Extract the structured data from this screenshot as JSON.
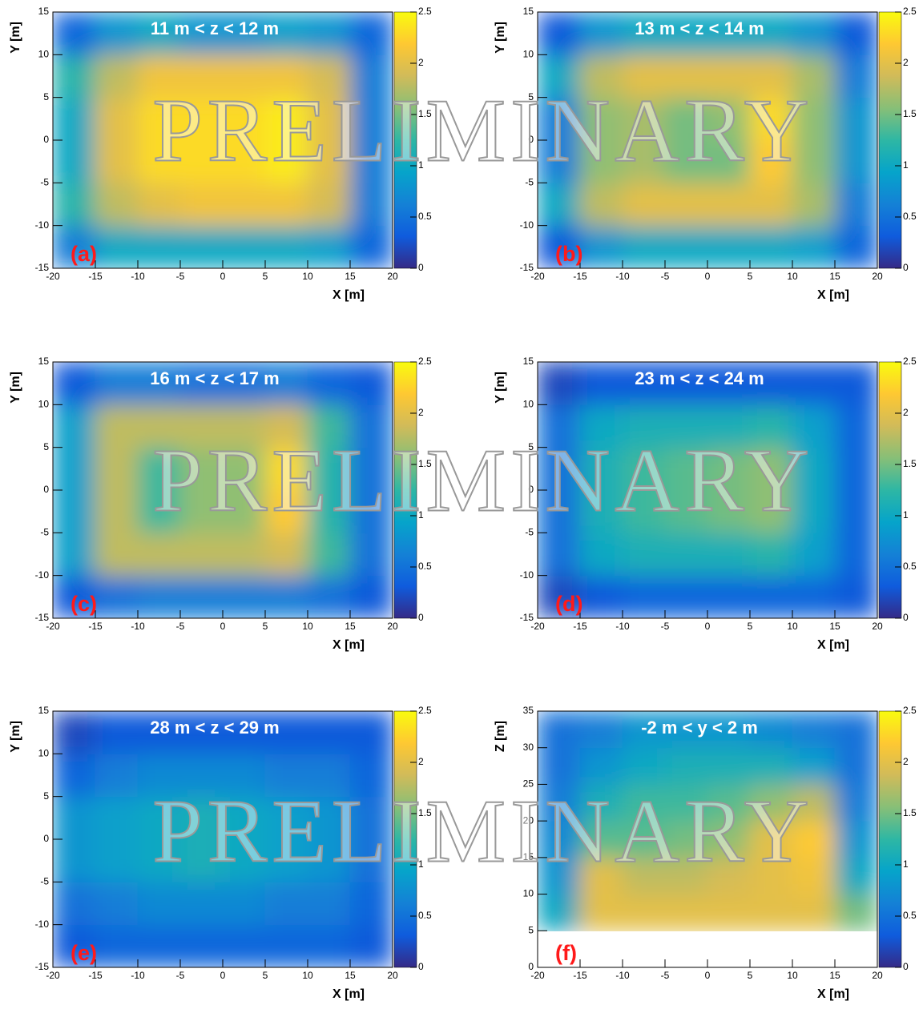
{
  "chart_data": [
    {
      "type": "heatmap",
      "title": "11 m < z < 12 m",
      "label": "(a)",
      "xlabel": "X [m]",
      "ylabel": "Y [m]",
      "xlim": [
        -20,
        20
      ],
      "ylim": [
        -15,
        15
      ],
      "xticks": [
        -20,
        -15,
        -10,
        -5,
        0,
        5,
        10,
        15,
        20
      ],
      "yticks": [
        -15,
        -10,
        -5,
        0,
        5,
        10,
        15
      ],
      "zlim": [
        0,
        2.5
      ],
      "zticks": [
        0,
        0.5,
        1,
        1.5,
        2,
        2.5
      ],
      "xbins": [
        -20,
        -15,
        -10,
        -5,
        0,
        5,
        10,
        15,
        20
      ],
      "ybins": [
        -15,
        -10,
        -5,
        0,
        5,
        10,
        15
      ],
      "values": [
        [
          0.6,
          1.0,
          1.0,
          1.0,
          1.0,
          1.0,
          0.9,
          0.4
        ],
        [
          1.2,
          1.8,
          2.0,
          2.1,
          2.1,
          2.1,
          1.9,
          0.6
        ],
        [
          1.0,
          2.0,
          2.3,
          2.3,
          2.3,
          2.4,
          2.0,
          0.6
        ],
        [
          1.0,
          2.0,
          2.3,
          2.3,
          2.3,
          2.4,
          2.0,
          0.6
        ],
        [
          1.2,
          1.8,
          2.1,
          2.1,
          2.1,
          2.1,
          1.9,
          0.6
        ],
        [
          0.4,
          0.8,
          1.0,
          0.8,
          0.8,
          0.9,
          0.8,
          0.4
        ]
      ]
    },
    {
      "type": "heatmap",
      "title": "13 m < z < 14 m",
      "label": "(b)",
      "xlabel": "X [m]",
      "ylabel": "Y [m]",
      "xlim": [
        -20,
        20
      ],
      "ylim": [
        -15,
        15
      ],
      "xticks": [
        -20,
        -15,
        -10,
        -5,
        0,
        5,
        10,
        15,
        20
      ],
      "yticks": [
        -15,
        -10,
        -5,
        0,
        5,
        10,
        15
      ],
      "zlim": [
        0,
        2.5
      ],
      "zticks": [
        0,
        0.5,
        1,
        1.5,
        2,
        2.5
      ],
      "xbins": [
        -20,
        -15,
        -10,
        -5,
        0,
        5,
        10,
        15,
        20
      ],
      "ybins": [
        -15,
        -10,
        -5,
        0,
        5,
        10,
        15
      ],
      "values": [
        [
          0.3,
          0.8,
          1.0,
          1.0,
          1.0,
          1.0,
          0.9,
          0.4
        ],
        [
          1.0,
          1.8,
          2.0,
          2.0,
          2.0,
          2.0,
          1.7,
          0.6
        ],
        [
          0.6,
          1.6,
          1.7,
          1.5,
          1.5,
          2.2,
          1.6,
          0.8
        ],
        [
          0.6,
          1.6,
          1.7,
          1.5,
          1.6,
          2.3,
          1.6,
          0.8
        ],
        [
          1.0,
          1.8,
          2.0,
          2.0,
          2.0,
          2.0,
          1.7,
          0.6
        ],
        [
          0.3,
          0.8,
          1.0,
          1.0,
          1.0,
          1.0,
          0.8,
          0.3
        ]
      ]
    },
    {
      "type": "heatmap",
      "title": "16 m < z < 17 m",
      "label": "(c)",
      "xlabel": "X [m]",
      "ylabel": "Y [m]",
      "xlim": [
        -20,
        20
      ],
      "ylim": [
        -15,
        15
      ],
      "xticks": [
        -20,
        -15,
        -10,
        -5,
        0,
        5,
        10,
        15,
        20
      ],
      "yticks": [
        -15,
        -10,
        -5,
        0,
        5,
        10,
        15
      ],
      "zlim": [
        0,
        2.5
      ],
      "zticks": [
        0,
        0.5,
        1,
        1.5,
        2,
        2.5
      ],
      "xbins": [
        -20,
        -15,
        -10,
        -5,
        0,
        5,
        10,
        15,
        20
      ],
      "ybins": [
        -15,
        -10,
        -5,
        0,
        5,
        10,
        15
      ],
      "values": [
        [
          0.3,
          0.5,
          0.6,
          0.6,
          0.6,
          0.6,
          0.5,
          0.3
        ],
        [
          0.9,
          1.8,
          1.8,
          1.8,
          1.8,
          1.9,
          1.3,
          0.5
        ],
        [
          0.9,
          1.8,
          1.3,
          1.6,
          1.6,
          2.2,
          1.2,
          0.5
        ],
        [
          0.9,
          1.8,
          1.3,
          1.6,
          1.6,
          2.3,
          1.2,
          0.5
        ],
        [
          0.9,
          1.8,
          1.8,
          1.8,
          1.8,
          1.9,
          1.3,
          0.5
        ],
        [
          0.3,
          0.6,
          0.6,
          0.5,
          0.5,
          0.6,
          0.4,
          0.3
        ]
      ]
    },
    {
      "type": "heatmap",
      "title": "23 m < z < 24 m",
      "label": "(d)",
      "xlabel": "X [m]",
      "ylabel": "Y [m]",
      "xlim": [
        -20,
        20
      ],
      "ylim": [
        -15,
        15
      ],
      "xticks": [
        -20,
        -15,
        -10,
        -5,
        0,
        5,
        10,
        15,
        20
      ],
      "yticks": [
        -15,
        -10,
        -5,
        0,
        5,
        10,
        15
      ],
      "zlim": [
        0,
        2.5
      ],
      "zticks": [
        0,
        0.5,
        1,
        1.5,
        2,
        2.5
      ],
      "xbins": [
        -20,
        -15,
        -10,
        -5,
        0,
        5,
        10,
        15,
        20
      ],
      "ybins": [
        -15,
        -10,
        -5,
        0,
        5,
        10,
        15
      ],
      "values": [
        [
          0.2,
          0.3,
          0.4,
          0.4,
          0.4,
          0.4,
          0.4,
          0.3
        ],
        [
          0.5,
          1.0,
          1.1,
          1.1,
          1.1,
          1.2,
          0.9,
          0.4
        ],
        [
          0.5,
          1.1,
          1.3,
          1.4,
          1.5,
          1.6,
          1.0,
          0.4
        ],
        [
          0.5,
          1.1,
          1.3,
          1.4,
          1.5,
          1.6,
          1.0,
          0.4
        ],
        [
          0.5,
          1.0,
          1.1,
          1.1,
          1.1,
          1.2,
          0.9,
          0.4
        ],
        [
          0.2,
          0.3,
          0.3,
          0.3,
          0.3,
          0.3,
          0.3,
          0.3
        ]
      ]
    },
    {
      "type": "heatmap",
      "title": "28 m < z < 29 m",
      "label": "(e)",
      "xlabel": "X [m]",
      "ylabel": "Y [m]",
      "xlim": [
        -20,
        20
      ],
      "ylim": [
        -15,
        15
      ],
      "xticks": [
        -20,
        -15,
        -10,
        -5,
        0,
        5,
        10,
        15,
        20
      ],
      "yticks": [
        -15,
        -10,
        -5,
        0,
        5,
        10,
        15
      ],
      "zlim": [
        0,
        2.5
      ],
      "zticks": [
        0,
        0.5,
        1,
        1.5,
        2,
        2.5
      ],
      "xbins": [
        -20,
        -15,
        -10,
        -5,
        0,
        5,
        10,
        15,
        20
      ],
      "ybins": [
        -15,
        -10,
        -5,
        0,
        5,
        10,
        15
      ],
      "values": [
        [
          0.3,
          0.4,
          0.4,
          0.4,
          0.4,
          0.4,
          0.4,
          0.3
        ],
        [
          0.5,
          0.6,
          0.7,
          0.7,
          0.7,
          0.6,
          0.6,
          0.4
        ],
        [
          0.8,
          0.9,
          1.0,
          1.1,
          1.0,
          0.9,
          0.8,
          0.5
        ],
        [
          0.8,
          0.9,
          1.0,
          1.1,
          1.0,
          0.9,
          0.8,
          0.5
        ],
        [
          0.4,
          0.6,
          0.7,
          0.7,
          0.7,
          0.6,
          0.6,
          0.4
        ],
        [
          0.2,
          0.3,
          0.3,
          0.3,
          0.3,
          0.3,
          0.3,
          0.3
        ]
      ]
    },
    {
      "type": "heatmap",
      "title": "-2 m < y < 2 m",
      "label": "(f)",
      "xlabel": "X [m]",
      "ylabel": "Z [m]",
      "xlim": [
        -20,
        20
      ],
      "ylim": [
        0,
        35
      ],
      "xticks": [
        -20,
        -15,
        -10,
        -5,
        0,
        5,
        10,
        15,
        20
      ],
      "yticks": [
        0,
        5,
        10,
        15,
        20,
        25,
        30,
        35
      ],
      "zlim": [
        0,
        2.5
      ],
      "zticks": [
        0,
        0.5,
        1,
        1.5,
        2,
        2.5
      ],
      "xbins": [
        -20,
        -15,
        -10,
        -5,
        0,
        5,
        10,
        15,
        20
      ],
      "ybins": [
        0,
        5,
        10,
        15,
        20,
        25,
        30,
        35
      ],
      "values": [
        [
          null,
          null,
          null,
          null,
          null,
          null,
          null,
          null
        ],
        [
          1.0,
          2.0,
          2.0,
          2.0,
          2.0,
          2.0,
          2.0,
          1.5
        ],
        [
          0.8,
          2.0,
          1.8,
          1.8,
          1.9,
          2.0,
          2.1,
          1.0
        ],
        [
          0.7,
          1.4,
          1.4,
          1.5,
          1.6,
          2.0,
          2.2,
          0.8
        ],
        [
          0.6,
          1.1,
          1.3,
          1.3,
          1.4,
          1.6,
          1.8,
          0.6
        ],
        [
          0.5,
          0.8,
          1.0,
          1.1,
          1.1,
          1.1,
          0.9,
          0.5
        ],
        [
          0.5,
          0.6,
          0.8,
          0.8,
          0.8,
          0.7,
          0.6,
          0.5
        ]
      ]
    }
  ],
  "watermark": "PRELIMINARY",
  "colors": [
    "#352a87",
    "#0f5cdd",
    "#1481d6",
    "#06a4ca",
    "#2eb7a4",
    "#87bf77",
    "#d1bb59",
    "#fec832",
    "#f9fb0e"
  ]
}
